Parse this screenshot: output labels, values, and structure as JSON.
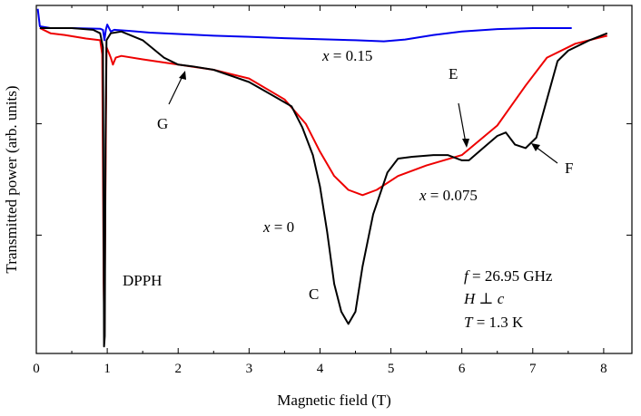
{
  "chart_data": {
    "type": "line",
    "title": "",
    "xlabel": "Magnetic field (T)",
    "ylabel": "Transmitted power (arb. units)",
    "xlim": [
      0,
      8.5
    ],
    "ylim": [
      0,
      1
    ],
    "x_ticks": [
      "0",
      "1",
      "2",
      "3",
      "4",
      "5",
      "6",
      "7",
      "8"
    ],
    "grid": false,
    "legend": "none",
    "series": [
      {
        "name": "x = 0.15",
        "color": "#0000ee",
        "points": [
          [
            0.02,
            0.99
          ],
          [
            0.05,
            0.94
          ],
          [
            0.2,
            0.935
          ],
          [
            0.5,
            0.935
          ],
          [
            0.9,
            0.933
          ],
          [
            0.94,
            0.93
          ],
          [
            0.96,
            0.9
          ],
          [
            0.98,
            0.93
          ],
          [
            1.0,
            0.945
          ],
          [
            1.05,
            0.925
          ],
          [
            1.1,
            0.93
          ],
          [
            1.3,
            0.927
          ],
          [
            1.6,
            0.922
          ],
          [
            2.0,
            0.918
          ],
          [
            2.5,
            0.913
          ],
          [
            3.0,
            0.91
          ],
          [
            3.5,
            0.906
          ],
          [
            4.0,
            0.903
          ],
          [
            4.5,
            0.9
          ],
          [
            4.9,
            0.897
          ],
          [
            5.2,
            0.902
          ],
          [
            5.6,
            0.915
          ],
          [
            6.0,
            0.925
          ],
          [
            6.5,
            0.932
          ],
          [
            7.0,
            0.935
          ],
          [
            7.55,
            0.935
          ]
        ]
      },
      {
        "name": "x = 0.075",
        "color": "#ee0000",
        "points": [
          [
            0.05,
            0.935
          ],
          [
            0.2,
            0.92
          ],
          [
            0.4,
            0.915
          ],
          [
            0.7,
            0.905
          ],
          [
            0.9,
            0.9
          ],
          [
            0.93,
            0.86
          ],
          [
            0.95,
            0.2
          ],
          [
            0.96,
            0.05
          ],
          [
            0.97,
            0.35
          ],
          [
            0.99,
            0.88
          ],
          [
            1.02,
            0.865
          ],
          [
            1.05,
            0.85
          ],
          [
            1.08,
            0.83
          ],
          [
            1.12,
            0.85
          ],
          [
            1.2,
            0.855
          ],
          [
            1.5,
            0.845
          ],
          [
            2.0,
            0.83
          ],
          [
            2.5,
            0.815
          ],
          [
            3.0,
            0.79
          ],
          [
            3.5,
            0.73
          ],
          [
            3.8,
            0.66
          ],
          [
            4.0,
            0.58
          ],
          [
            4.2,
            0.51
          ],
          [
            4.4,
            0.47
          ],
          [
            4.6,
            0.455
          ],
          [
            4.8,
            0.47
          ],
          [
            5.1,
            0.51
          ],
          [
            5.5,
            0.54
          ],
          [
            6.0,
            0.57
          ],
          [
            6.5,
            0.655
          ],
          [
            6.9,
            0.77
          ],
          [
            7.2,
            0.85
          ],
          [
            7.6,
            0.89
          ],
          [
            8.05,
            0.913
          ]
        ]
      },
      {
        "name": "x = 0",
        "color": "#000000",
        "points": [
          [
            0.05,
            0.935
          ],
          [
            0.2,
            0.935
          ],
          [
            0.5,
            0.935
          ],
          [
            0.8,
            0.93
          ],
          [
            0.9,
            0.92
          ],
          [
            0.94,
            0.88
          ],
          [
            0.95,
            0.3
          ],
          [
            0.955,
            0.02
          ],
          [
            0.965,
            0.05
          ],
          [
            0.975,
            0.6
          ],
          [
            0.99,
            0.9
          ],
          [
            1.05,
            0.92
          ],
          [
            1.2,
            0.925
          ],
          [
            1.5,
            0.9
          ],
          [
            1.8,
            0.85
          ],
          [
            2.0,
            0.83
          ],
          [
            2.2,
            0.825
          ],
          [
            2.5,
            0.815
          ],
          [
            3.0,
            0.78
          ],
          [
            3.3,
            0.745
          ],
          [
            3.6,
            0.71
          ],
          [
            3.75,
            0.65
          ],
          [
            3.9,
            0.57
          ],
          [
            4.0,
            0.48
          ],
          [
            4.1,
            0.35
          ],
          [
            4.2,
            0.2
          ],
          [
            4.3,
            0.12
          ],
          [
            4.4,
            0.085
          ],
          [
            4.5,
            0.12
          ],
          [
            4.6,
            0.25
          ],
          [
            4.75,
            0.4
          ],
          [
            4.95,
            0.52
          ],
          [
            5.1,
            0.56
          ],
          [
            5.3,
            0.565
          ],
          [
            5.6,
            0.57
          ],
          [
            5.8,
            0.57
          ],
          [
            6.0,
            0.555
          ],
          [
            6.1,
            0.555
          ],
          [
            6.3,
            0.59
          ],
          [
            6.5,
            0.625
          ],
          [
            6.62,
            0.635
          ],
          [
            6.75,
            0.6
          ],
          [
            6.9,
            0.59
          ],
          [
            7.05,
            0.62
          ],
          [
            7.2,
            0.73
          ],
          [
            7.35,
            0.84
          ],
          [
            7.5,
            0.87
          ],
          [
            7.8,
            0.9
          ],
          [
            8.05,
            0.92
          ]
        ]
      }
    ],
    "annotations": [
      {
        "id": "label-x015",
        "parts": [
          {
            "t": "x",
            "i": true
          },
          {
            "t": " = 0.15",
            "i": false
          }
        ],
        "color": "#0000ee"
      },
      {
        "id": "label-x0075",
        "parts": [
          {
            "t": "x",
            "i": true
          },
          {
            "t": " = 0.075",
            "i": false
          }
        ],
        "color": "#ee0000"
      },
      {
        "id": "label-x0",
        "parts": [
          {
            "t": "x",
            "i": true
          },
          {
            "t": " = 0",
            "i": false
          }
        ],
        "color": "#000000"
      },
      {
        "id": "label-G",
        "parts": [
          {
            "t": "G",
            "i": false
          }
        ],
        "color": "#000000"
      },
      {
        "id": "label-E",
        "parts": [
          {
            "t": "E",
            "i": false
          }
        ],
        "color": "#000000"
      },
      {
        "id": "label-F",
        "parts": [
          {
            "t": "F",
            "i": false
          }
        ],
        "color": "#000000"
      },
      {
        "id": "label-C",
        "parts": [
          {
            "t": "C",
            "i": false
          }
        ],
        "color": "#000000"
      },
      {
        "id": "label-DPPH",
        "parts": [
          {
            "t": "DPPH",
            "i": false
          }
        ],
        "color": "#000000"
      },
      {
        "id": "label-freq",
        "parts": [
          {
            "t": "f",
            "i": true
          },
          {
            "t": " = 26.95 GHz",
            "i": false
          }
        ],
        "color": "#000000"
      },
      {
        "id": "label-orient",
        "parts": [
          {
            "t": "H",
            "i": true
          },
          {
            "t": " ⊥ ",
            "i": false
          },
          {
            "t": "c",
            "i": true
          }
        ],
        "color": "#000000"
      },
      {
        "id": "label-temp",
        "parts": [
          {
            "t": "T",
            "i": true
          },
          {
            "t": " = 1.3 K",
            "i": false
          }
        ],
        "color": "#000000"
      }
    ]
  }
}
